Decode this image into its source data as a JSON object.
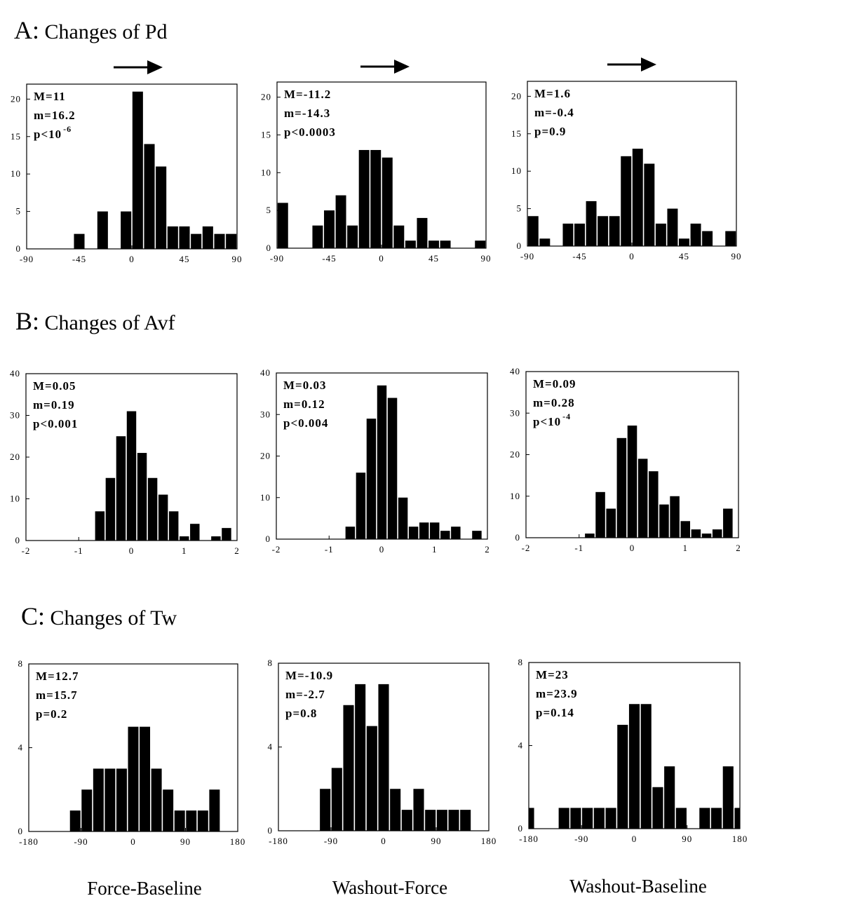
{
  "rows": [
    {
      "letter": "A:",
      "title": "Changes of Pd"
    },
    {
      "letter": "B:",
      "title": "Changes of Avf"
    },
    {
      "letter": "C:",
      "title": "Changes of Tw"
    }
  ],
  "columns": [
    "Force-Baseline",
    "Washout-Force",
    "Washout-Baseline"
  ],
  "chart_data": [
    {
      "type": "bar",
      "row": "A",
      "column": "Force-Baseline",
      "xlim": [
        -90,
        90
      ],
      "ylim": [
        0,
        22
      ],
      "xticks": [
        -90,
        -45,
        0,
        45,
        90
      ],
      "yticks": [
        0,
        5,
        10,
        15,
        20
      ],
      "bin_width": 10,
      "x": [
        -45,
        -25,
        -5,
        5,
        15,
        25,
        35,
        45,
        55,
        65,
        75,
        85
      ],
      "values": [
        2,
        5,
        5,
        21,
        14,
        11,
        3,
        3,
        2,
        3,
        2,
        2
      ],
      "stats": {
        "M": "M=11",
        "m": "m=16.2",
        "p": "p<10",
        "p_exp": "-6"
      }
    },
    {
      "type": "bar",
      "row": "A",
      "column": "Washout-Force",
      "xlim": [
        -90,
        90
      ],
      "ylim": [
        0,
        22
      ],
      "xticks": [
        -90,
        -45,
        0,
        45,
        90
      ],
      "yticks": [
        0,
        5,
        10,
        15,
        20
      ],
      "bin_width": 10,
      "x": [
        -85,
        -55,
        -45,
        -35,
        -25,
        -15,
        -5,
        5,
        15,
        25,
        35,
        45,
        55,
        85
      ],
      "values": [
        6,
        3,
        5,
        7,
        3,
        13,
        13,
        12,
        3,
        1,
        4,
        1,
        1,
        1
      ],
      "stats": {
        "M": "M=-11.2",
        "m": "m=-14.3",
        "p": "p<0.0003",
        "p_exp": ""
      }
    },
    {
      "type": "bar",
      "row": "A",
      "column": "Washout-Baseline",
      "xlim": [
        -90,
        90
      ],
      "ylim": [
        0,
        22
      ],
      "xticks": [
        -90,
        -45,
        0,
        45,
        90
      ],
      "yticks": [
        0,
        5,
        10,
        15,
        20
      ],
      "bin_width": 10,
      "x": [
        -85,
        -75,
        -55,
        -45,
        -35,
        -25,
        -15,
        -5,
        5,
        15,
        25,
        35,
        45,
        55,
        65,
        85
      ],
      "values": [
        4,
        1,
        3,
        3,
        6,
        4,
        4,
        12,
        13,
        11,
        3,
        5,
        1,
        3,
        2,
        2
      ],
      "stats": {
        "M": "M=1.6",
        "m": "m=-0.4",
        "p": "p=0.9",
        "p_exp": ""
      }
    },
    {
      "type": "bar",
      "row": "B",
      "column": "Force-Baseline",
      "xlim": [
        -2,
        2
      ],
      "ylim": [
        0,
        40
      ],
      "xticks": [
        -2,
        -1,
        0,
        1,
        2
      ],
      "yticks": [
        0,
        10,
        20,
        30,
        40
      ],
      "bin_width": 0.2,
      "x": [
        -0.6,
        -0.4,
        -0.2,
        0.0,
        0.2,
        0.4,
        0.6,
        0.8,
        1.0,
        1.2,
        1.6,
        1.8
      ],
      "values": [
        7,
        15,
        25,
        31,
        21,
        15,
        11,
        7,
        1,
        4,
        1,
        3
      ],
      "stats": {
        "M": "M=0.05",
        "m": "m=0.19",
        "p": "p<0.001",
        "p_exp": ""
      }
    },
    {
      "type": "bar",
      "row": "B",
      "column": "Washout-Force",
      "xlim": [
        -2,
        2
      ],
      "ylim": [
        0,
        40
      ],
      "xticks": [
        -2,
        -1,
        0,
        1,
        2
      ],
      "yticks": [
        0,
        10,
        20,
        30,
        40
      ],
      "bin_width": 0.2,
      "x": [
        -0.6,
        -0.4,
        -0.2,
        0.0,
        0.2,
        0.4,
        0.6,
        0.8,
        1.0,
        1.2,
        1.4,
        1.8
      ],
      "values": [
        3,
        16,
        29,
        37,
        34,
        10,
        3,
        4,
        4,
        2,
        3,
        2
      ],
      "stats": {
        "M": "M=0.03",
        "m": "m=0.12",
        "p": "p<0.004",
        "p_exp": ""
      }
    },
    {
      "type": "bar",
      "row": "B",
      "column": "Washout-Baseline",
      "xlim": [
        -2,
        2
      ],
      "ylim": [
        0,
        40
      ],
      "xticks": [
        -2,
        -1,
        0,
        1,
        2
      ],
      "yticks": [
        0,
        10,
        20,
        30,
        40
      ],
      "bin_width": 0.2,
      "x": [
        -0.8,
        -0.6,
        -0.4,
        -0.2,
        0.0,
        0.2,
        0.4,
        0.6,
        0.8,
        1.0,
        1.2,
        1.4,
        1.6,
        1.8
      ],
      "values": [
        1,
        11,
        7,
        24,
        27,
        19,
        16,
        8,
        10,
        4,
        2,
        1,
        2,
        7
      ],
      "stats": {
        "M": "M=0.09",
        "m": "m=0.28",
        "p": "p<10",
        "p_exp": "-4"
      }
    },
    {
      "type": "bar",
      "row": "C",
      "column": "Force-Baseline",
      "xlim": [
        -180,
        180
      ],
      "ylim": [
        0,
        8
      ],
      "xticks": [
        -180,
        -90,
        0,
        90,
        180
      ],
      "yticks": [
        0,
        4,
        8
      ],
      "bin_width": 20,
      "x": [
        -100,
        -80,
        -60,
        -40,
        -20,
        0,
        20,
        40,
        60,
        80,
        100,
        120,
        140
      ],
      "values": [
        1,
        2,
        3,
        3,
        3,
        5,
        5,
        3,
        2,
        1,
        1,
        1,
        2
      ],
      "stats": {
        "M": "M=12.7",
        "m": "m=15.7",
        "p": "p=0.2",
        "p_exp": ""
      }
    },
    {
      "type": "bar",
      "row": "C",
      "column": "Washout-Force",
      "xlim": [
        -180,
        180
      ],
      "ylim": [
        0,
        8
      ],
      "xticks": [
        -180,
        -90,
        0,
        90,
        180
      ],
      "yticks": [
        0,
        4,
        8
      ],
      "bin_width": 20,
      "x": [
        -100,
        -80,
        -60,
        -40,
        -20,
        0,
        20,
        40,
        60,
        80,
        100,
        120,
        140
      ],
      "values": [
        2,
        3,
        6,
        7,
        5,
        7,
        2,
        1,
        2,
        1,
        1,
        1,
        1
      ],
      "stats": {
        "M": "M=-10.9",
        "m": "m=-2.7",
        "p": "p=0.8",
        "p_exp": ""
      }
    },
    {
      "type": "bar",
      "row": "C",
      "column": "Washout-Baseline",
      "xlim": [
        -180,
        180
      ],
      "ylim": [
        0,
        8
      ],
      "xticks": [
        -180,
        -90,
        0,
        90,
        180
      ],
      "yticks": [
        0,
        4,
        8
      ],
      "bin_width": 20,
      "x": [
        -180,
        -120,
        -100,
        -80,
        -60,
        -40,
        -20,
        0,
        20,
        40,
        60,
        80,
        120,
        140,
        160,
        180
      ],
      "values": [
        1,
        1,
        1,
        1,
        1,
        1,
        5,
        6,
        6,
        2,
        3,
        1,
        1,
        1,
        3,
        1
      ],
      "stats": {
        "M": "M=23",
        "m": "m=23.9",
        "p": "p=0.14",
        "p_exp": ""
      }
    }
  ]
}
